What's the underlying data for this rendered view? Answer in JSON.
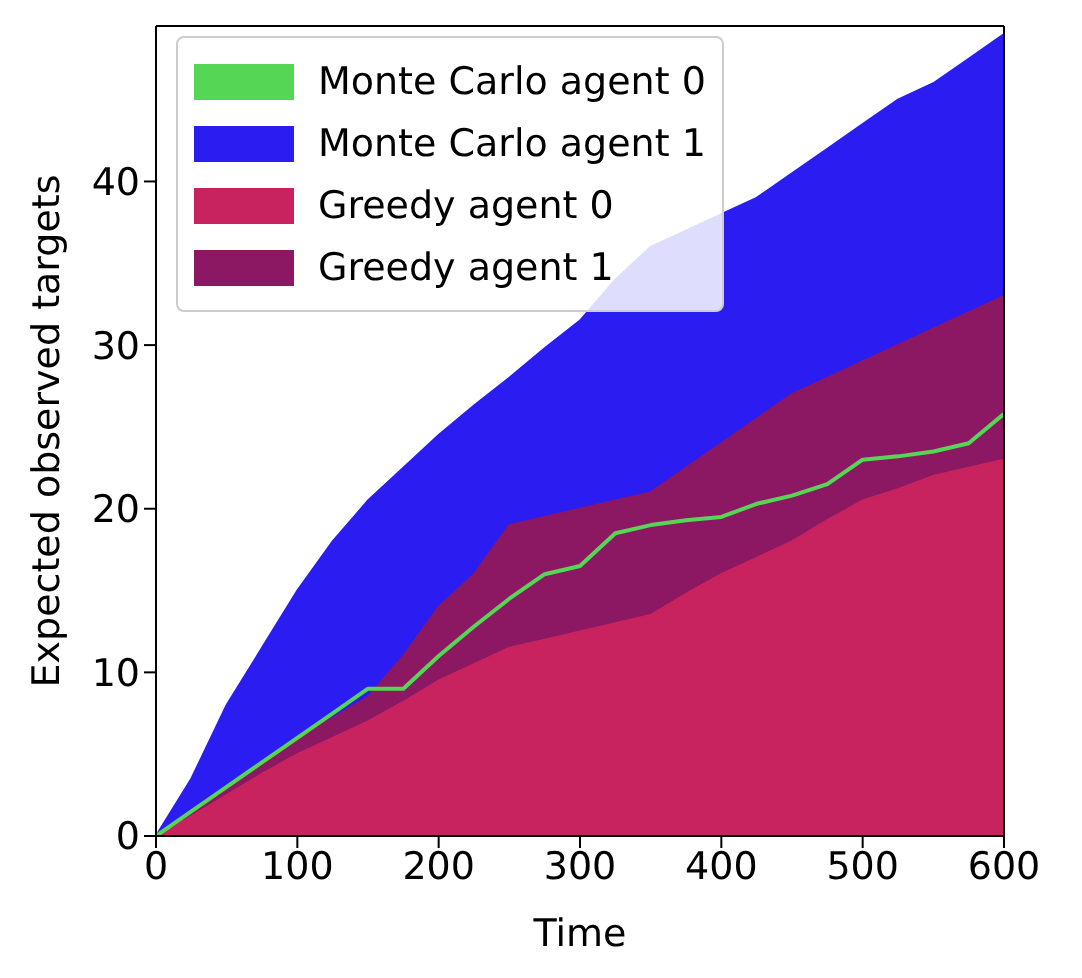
{
  "chart_data": {
    "type": "area",
    "xlabel": "Time",
    "ylabel": "Expected observed targets",
    "x": [
      0,
      25,
      50,
      75,
      100,
      125,
      150,
      175,
      200,
      225,
      250,
      275,
      300,
      325,
      350,
      375,
      400,
      425,
      450,
      475,
      500,
      525,
      550,
      575,
      600
    ],
    "series": [
      {
        "name": "Monte Carlo agent 0",
        "type": "line",
        "color": "#55d655",
        "values": [
          0,
          1.5,
          3,
          4.5,
          6,
          7.5,
          9,
          9,
          11,
          12.8,
          14.5,
          16,
          16.5,
          18.5,
          19,
          19.3,
          19.5,
          20.3,
          20.8,
          21.5,
          23,
          23.2,
          23.5,
          24,
          25.8
        ]
      },
      {
        "name": "Monte Carlo agent 1",
        "color": "#2b1df2",
        "values": [
          0,
          3.5,
          8,
          11.5,
          15,
          18,
          20.5,
          22.5,
          24.5,
          26.3,
          28,
          29.8,
          31.5,
          34,
          36,
          37,
          38,
          39,
          40.5,
          42,
          43.5,
          45,
          46,
          47.5,
          49
        ]
      },
      {
        "name": "Greedy agent 0",
        "color": "#c8235f",
        "values": [
          0,
          1.2,
          2.5,
          3.8,
          5,
          6,
          7,
          8.2,
          9.5,
          10.5,
          11.5,
          12,
          12.5,
          13,
          13.5,
          14.8,
          16,
          17,
          18,
          19.3,
          20.5,
          21.2,
          22,
          22.5,
          23
        ]
      },
      {
        "name": "Greedy agent 1",
        "color": "#8c1762",
        "values": [
          0,
          1.5,
          3,
          4.5,
          6,
          7.2,
          8.5,
          11,
          14,
          16,
          19,
          19.5,
          20,
          20.5,
          21,
          22.5,
          24,
          25.5,
          27,
          28,
          29,
          30,
          31,
          32,
          33
        ]
      }
    ],
    "xlim": [
      0,
      600
    ],
    "xticks": [
      0,
      100,
      200,
      300,
      400,
      500,
      600
    ],
    "ylim": [
      0,
      49.5
    ],
    "yticks": [
      0,
      10,
      20,
      30,
      40
    ],
    "legend": "top left"
  }
}
